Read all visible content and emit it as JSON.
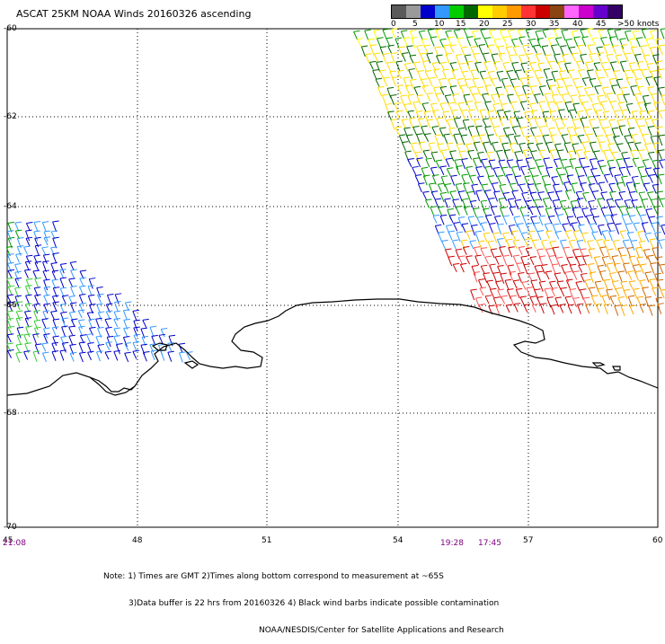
{
  "title": "ASCAT 25KM NOAA Winds 20160326 ascending",
  "colorbar": {
    "labels": [
      "0",
      "5",
      "10",
      "15",
      "20",
      "25",
      "30",
      "35",
      "40",
      "45",
      ">50 knots"
    ],
    "colors": [
      "#5a5a5a",
      "#9a9a9a",
      "#0000cc",
      "#3399ff",
      "#00cc00",
      "#006600",
      "#ffff00",
      "#ffcc00",
      "#ff9900",
      "#ff3333",
      "#cc0000",
      "#8b4513",
      "#ff66ff",
      "#cc00cc",
      "#6600cc",
      "#330066"
    ]
  },
  "axes": {
    "lat_labels": [
      "-60",
      "-62",
      "-64",
      "-66",
      "-68",
      "-70"
    ],
    "lon_labels": [
      "45",
      "48",
      "51",
      "54",
      "57",
      "60"
    ]
  },
  "times": [
    {
      "label": "21:08"
    },
    {
      "label": "19:28"
    },
    {
      "label": "17:45"
    }
  ],
  "notes": [
    "Note: 1) Times are GMT 2)Times along bottom correspond to measurement at ~65S",
    "3)Data buffer is 22 hrs from 20160326 4) Black wind barbs indicate possible contamination",
    "NOAA/NESDIS/Center for Satellite Applications and Research"
  ]
}
